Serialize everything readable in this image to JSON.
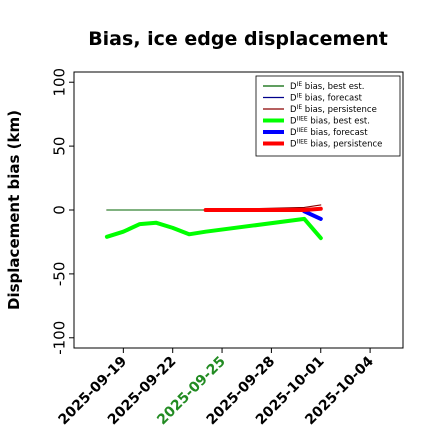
{
  "chart_data": {
    "type": "line",
    "title": "Bias, ice edge displacement",
    "xlabel": "",
    "ylabel": "Displacement bias (km)",
    "xlim": [
      "2025-09-16",
      "2025-10-06"
    ],
    "ylim": [
      -108,
      108
    ],
    "yticks": [
      -100,
      -50,
      0,
      50,
      100
    ],
    "xticks": [
      "2025-09-19",
      "2025-09-22",
      "2025-09-25",
      "2025-09-28",
      "2025-10-01",
      "2025-10-04"
    ],
    "xtick_colors": [
      "#000000",
      "#000000",
      "#228b22",
      "#000000",
      "#000000",
      "#000000"
    ],
    "grid": false,
    "legend_position": "top-right",
    "series": [
      {
        "legend_prefix": "D",
        "legend_sup": "IE",
        "legend_suffix": " bias, best est.",
        "color": "#006400",
        "thick": false,
        "x": [
          "2025-09-18",
          "2025-09-24"
        ],
        "y": [
          0,
          0
        ]
      },
      {
        "legend_prefix": "D",
        "legend_sup": "IE",
        "legend_suffix": " bias, forecast",
        "color": "#00008b",
        "thick": false,
        "x": [],
        "y": []
      },
      {
        "legend_prefix": "D",
        "legend_sup": "IE",
        "legend_suffix": " bias, persistence",
        "color": "#8b0000",
        "thick": false,
        "x": [
          "2025-09-24",
          "2025-09-30",
          "2025-10-01"
        ],
        "y": [
          0,
          2,
          4
        ]
      },
      {
        "legend_prefix": "D",
        "legend_sup": "IIEE",
        "legend_suffix": " bias, best est.",
        "color": "#00ff00",
        "thick": true,
        "x": [
          "2025-09-18",
          "2025-09-19",
          "2025-09-20",
          "2025-09-21",
          "2025-09-22",
          "2025-09-23",
          "2025-09-24",
          "2025-09-30",
          "2025-10-01"
        ],
        "y": [
          -21,
          -17,
          -11,
          -10,
          -14,
          -19,
          -17,
          -7,
          -22
        ]
      },
      {
        "legend_prefix": "D",
        "legend_sup": "IIEE",
        "legend_suffix": " bias, forecast",
        "color": "#0000ff",
        "thick": true,
        "x": [
          "2025-09-30",
          "2025-10-01"
        ],
        "y": [
          -1,
          -7
        ]
      },
      {
        "legend_prefix": "D",
        "legend_sup": "IIEE",
        "legend_suffix": " bias, persistence",
        "color": "#ff0000",
        "thick": true,
        "x": [
          "2025-09-24",
          "2025-09-30",
          "2025-10-01"
        ],
        "y": [
          0,
          0,
          1
        ]
      }
    ],
    "hidden_segments": [
      {
        "color": "#ff0000",
        "thick": false,
        "x": [
          "2025-09-18",
          "2025-09-24"
        ],
        "y": [
          0,
          0
        ]
      },
      {
        "color": "#000000",
        "thick": false,
        "x": [
          "2025-09-18",
          "2025-09-24"
        ],
        "y": [
          0,
          0
        ]
      },
      {
        "color": "#ff0000",
        "thick": false,
        "x": [
          "2025-09-24",
          "2025-09-30"
        ],
        "y": [
          0,
          1
        ]
      },
      {
        "color": "#00ff00",
        "thick": false,
        "x": [
          "2025-09-24",
          "2025-09-30"
        ],
        "y": [
          -17,
          -7
        ]
      }
    ]
  }
}
